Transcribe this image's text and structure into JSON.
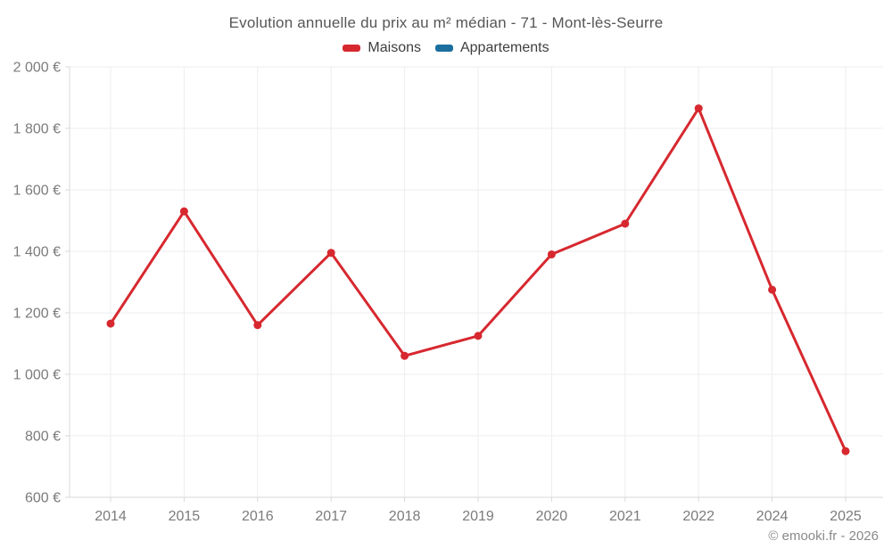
{
  "footer": {
    "copyright": "© emooki.fr - 2026"
  },
  "chart_data": {
    "type": "line",
    "title": "Evolution annuelle du prix au m² médian - 71 - Mont-lès-Seurre",
    "categories": [
      "2014",
      "2015",
      "2016",
      "2017",
      "2018",
      "2019",
      "2020",
      "2021",
      "2022",
      "2024",
      "2025"
    ],
    "series": [
      {
        "name": "Maisons",
        "color": "#d7282f",
        "values": [
          1165,
          1530,
          1160,
          1395,
          1060,
          1125,
          1390,
          1490,
          1865,
          1275,
          750
        ]
      },
      {
        "name": "Appartements",
        "color": "#1c6e9d",
        "values": []
      }
    ],
    "xlabel": "",
    "ylabel": "",
    "ylim": [
      600,
      2000
    ],
    "y_ticks": [
      600,
      800,
      1000,
      1200,
      1400,
      1600,
      1800,
      2000
    ],
    "y_tick_labels": [
      "600 €",
      "800 €",
      "1 000 €",
      "1 200 €",
      "1 400 €",
      "1 600 €",
      "1 800 €",
      "2 000 €"
    ],
    "grid": true,
    "legend_position": "top",
    "colors": {
      "grid": "#ededed",
      "axis": "#d9d9d9",
      "tick_label": "#7b7b7b",
      "title": "#565656",
      "footer": "#8a8a8a"
    }
  }
}
